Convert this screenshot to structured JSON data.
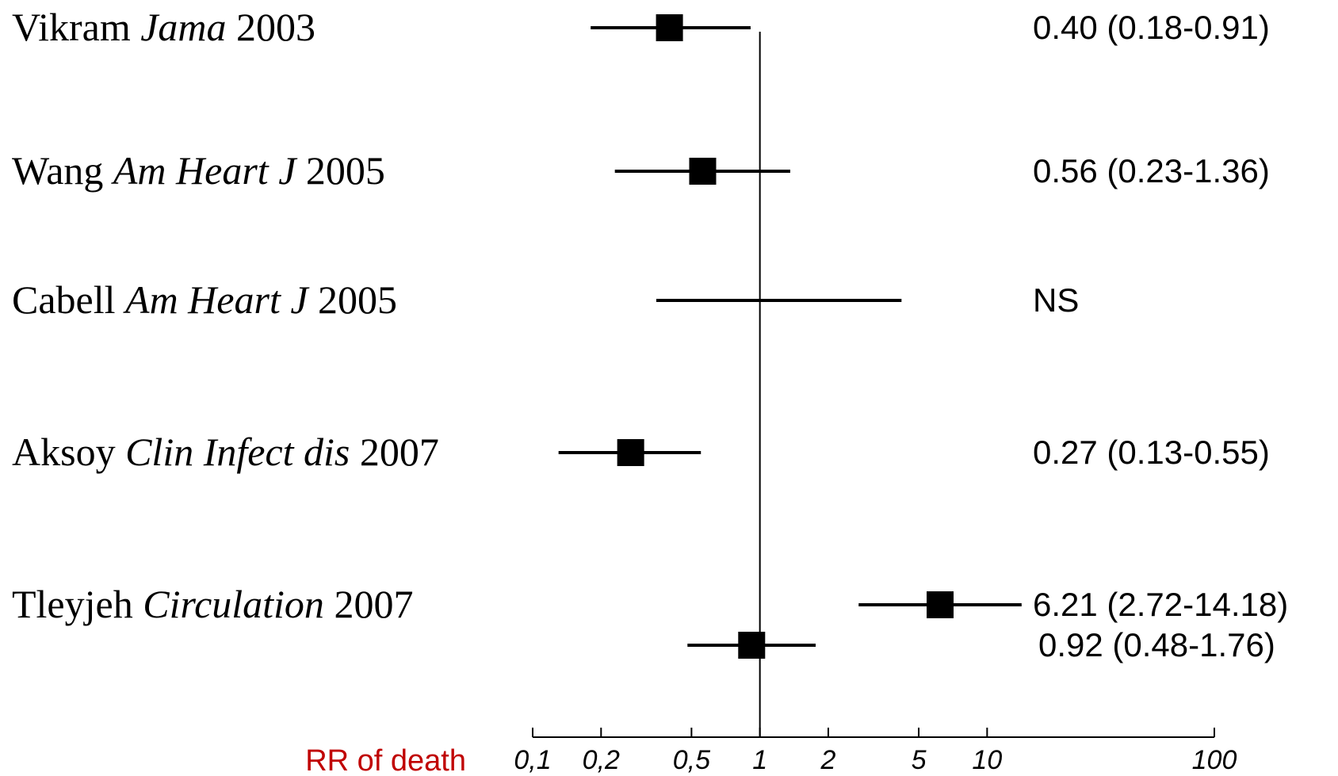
{
  "chart_data": {
    "type": "forest",
    "xlabel": "RR of death",
    "xscale": "log",
    "xlim": [
      0.1,
      100
    ],
    "xticks": [
      {
        "value": 0.1,
        "label": "0,1"
      },
      {
        "value": 0.2,
        "label": "0,2"
      },
      {
        "value": 0.5,
        "label": "0,5"
      },
      1,
      2,
      5,
      10,
      100
    ],
    "reference": 1,
    "color": "#000000",
    "studies": [
      {
        "author": "Vikram",
        "journal": "Jama",
        "year": "2003",
        "estimates": [
          {
            "value": 0.4,
            "lower": 0.18,
            "upper": 0.91,
            "value_label": "0.40 (0.18-0.91)"
          }
        ]
      },
      {
        "author": "Wang",
        "journal": "Am Heart J",
        "year": "2005",
        "estimates": [
          {
            "value": 0.56,
            "lower": 0.23,
            "upper": 1.36,
            "value_label": "0.56 (0.23-1.36)"
          }
        ]
      },
      {
        "author": "Cabell",
        "journal": "Am Heart J",
        "year": "2005",
        "estimates": [
          {
            "value": null,
            "lower": 0.35,
            "upper": 4.2,
            "value_label": "NS"
          }
        ]
      },
      {
        "author": "Aksoy",
        "journal": "Clin Infect dis",
        "year": "2007",
        "estimates": [
          {
            "value": 0.27,
            "lower": 0.13,
            "upper": 0.55,
            "value_label": "0.27 (0.13-0.55)"
          }
        ]
      },
      {
        "author": "Tleyjeh",
        "journal": "Circulation",
        "year": "2007",
        "estimates": [
          {
            "value": 6.21,
            "lower": 2.72,
            "upper": 14.18,
            "value_label": "6.21 (2.72-14.18)"
          },
          {
            "value": 0.92,
            "lower": 0.48,
            "upper": 1.76,
            "value_label": "0.92 (0.48-1.76)"
          }
        ]
      }
    ]
  }
}
